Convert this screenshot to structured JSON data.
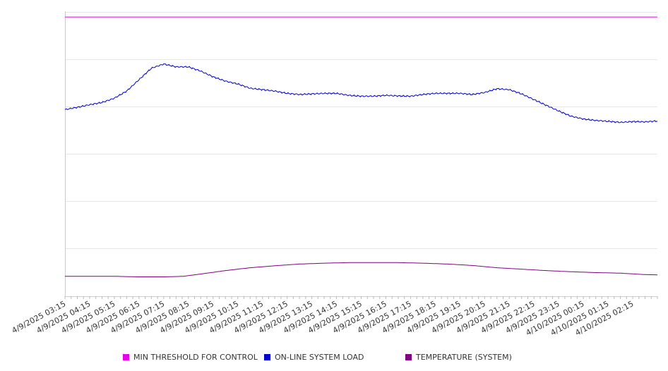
{
  "chart_data": {
    "type": "line",
    "title": "",
    "xlabel": "",
    "ylabel": "",
    "grid": true,
    "legend_position": "bottom",
    "ylim": [
      0,
      1
    ],
    "x_tick_labels": [
      "4/9/2025 03:15",
      "4/9/2025 04:15",
      "4/9/2025 05:15",
      "4/9/2025 06:15",
      "4/9/2025 07:15",
      "4/9/2025 08:15",
      "4/9/2025 09:15",
      "4/9/2025 10:15",
      "4/9/2025 11:15",
      "4/9/2025 12:15",
      "4/9/2025 13:15",
      "4/9/2025 14:15",
      "4/9/2025 15:15",
      "4/9/2025 16:15",
      "4/9/2025 17:15",
      "4/9/2025 18:15",
      "4/9/2025 19:15",
      "4/9/2025 20:15",
      "4/9/2025 21:15",
      "4/9/2025 22:15",
      "4/9/2025 23:15",
      "4/10/2025 00:15",
      "4/10/2025 01:15",
      "4/10/2025 02:15"
    ],
    "series": [
      {
        "name": "MIN THRESHOLD FOR CONTROL",
        "color": "#e600e6",
        "points": [
          [
            0,
            0.98
          ],
          [
            24,
            0.98
          ]
        ]
      },
      {
        "name": "ON-LINE SYSTEM LOAD",
        "color": "#0000cc",
        "points": [
          [
            0,
            0.655
          ],
          [
            0.5,
            0.663
          ],
          [
            1,
            0.672
          ],
          [
            1.5,
            0.68
          ],
          [
            2,
            0.695
          ],
          [
            2.5,
            0.72
          ],
          [
            3,
            0.76
          ],
          [
            3.5,
            0.8
          ],
          [
            4,
            0.815
          ],
          [
            4.5,
            0.805
          ],
          [
            5,
            0.805
          ],
          [
            5.5,
            0.79
          ],
          [
            6,
            0.77
          ],
          [
            6.5,
            0.755
          ],
          [
            7,
            0.745
          ],
          [
            7.5,
            0.73
          ],
          [
            8,
            0.725
          ],
          [
            8.5,
            0.72
          ],
          [
            9,
            0.712
          ],
          [
            9.5,
            0.708
          ],
          [
            10,
            0.71
          ],
          [
            10.5,
            0.712
          ],
          [
            11,
            0.712
          ],
          [
            11.5,
            0.705
          ],
          [
            12,
            0.702
          ],
          [
            12.5,
            0.702
          ],
          [
            13,
            0.705
          ],
          [
            13.5,
            0.703
          ],
          [
            14,
            0.702
          ],
          [
            14.5,
            0.708
          ],
          [
            15,
            0.712
          ],
          [
            15.5,
            0.712
          ],
          [
            16,
            0.712
          ],
          [
            16.5,
            0.708
          ],
          [
            17,
            0.715
          ],
          [
            17.5,
            0.728
          ],
          [
            18,
            0.725
          ],
          [
            18.5,
            0.71
          ],
          [
            19,
            0.69
          ],
          [
            19.5,
            0.67
          ],
          [
            20,
            0.65
          ],
          [
            20.5,
            0.632
          ],
          [
            21,
            0.622
          ],
          [
            21.5,
            0.617
          ],
          [
            22,
            0.614
          ],
          [
            22.5,
            0.61
          ],
          [
            23,
            0.613
          ],
          [
            23.5,
            0.612
          ],
          [
            24,
            0.615
          ]
        ]
      },
      {
        "name": "TEMPERATURE (SYSTEM)",
        "color": "#800080",
        "points": [
          [
            0,
            0.07
          ],
          [
            1,
            0.07
          ],
          [
            2,
            0.07
          ],
          [
            3,
            0.068
          ],
          [
            4,
            0.068
          ],
          [
            4.8,
            0.07
          ],
          [
            5.5,
            0.078
          ],
          [
            6.5,
            0.09
          ],
          [
            7.5,
            0.1
          ],
          [
            8.5,
            0.107
          ],
          [
            9.5,
            0.113
          ],
          [
            10.5,
            0.116
          ],
          [
            11.5,
            0.118
          ],
          [
            12.5,
            0.118
          ],
          [
            13.5,
            0.118
          ],
          [
            14.5,
            0.116
          ],
          [
            15.5,
            0.113
          ],
          [
            16.5,
            0.108
          ],
          [
            17.5,
            0.1
          ],
          [
            18.5,
            0.095
          ],
          [
            19.5,
            0.09
          ],
          [
            20.5,
            0.086
          ],
          [
            21.5,
            0.083
          ],
          [
            22.5,
            0.081
          ],
          [
            23.5,
            0.076
          ],
          [
            24,
            0.075
          ]
        ]
      }
    ]
  }
}
